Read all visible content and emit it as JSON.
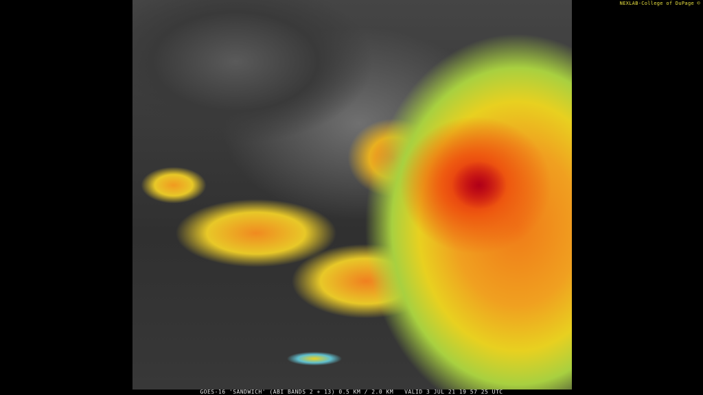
{
  "image": {
    "caption": "GOES-16 'SANDWICH' (ABI BANDS 2 + 13) 0.5 KM / 2.0 KM   VALID 3 JUL 21 19 57 25 UTC",
    "credit": "NEXLAB-College of DuPage ©",
    "colors": {
      "background": "#000000",
      "caption": "#e8e8e8",
      "credit": "#e8e040",
      "storm_core": "#c00018",
      "cloud_tops": "#f07a18"
    }
  }
}
